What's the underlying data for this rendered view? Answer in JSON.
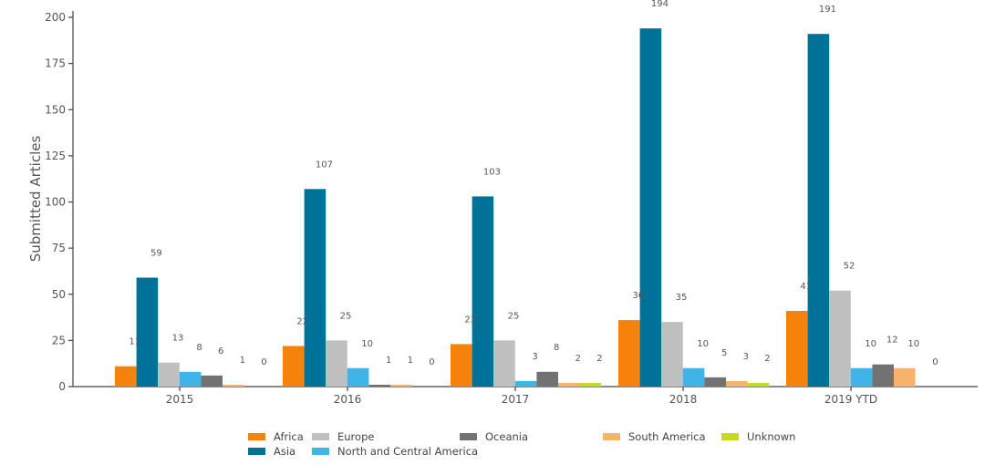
{
  "chart_data": {
    "type": "bar",
    "title": "",
    "xlabel": "",
    "ylabel": "Submitted Articles",
    "ylim": [
      0,
      200
    ],
    "yticks": [
      0,
      25,
      50,
      75,
      100,
      125,
      150,
      175,
      200
    ],
    "grid": false,
    "legend_position": "bottom",
    "categories": [
      "2015",
      "2016",
      "2017",
      "2018",
      "2019 YTD"
    ],
    "series": [
      {
        "name": "Africa",
        "color": "#f5820a",
        "values": [
          11,
          22,
          23,
          36,
          41
        ]
      },
      {
        "name": "Asia",
        "color": "#00729a",
        "values": [
          59,
          107,
          103,
          194,
          191
        ]
      },
      {
        "name": "Europe",
        "color": "#bfbfbf",
        "values": [
          13,
          25,
          25,
          35,
          52
        ]
      },
      {
        "name": "North and Central America",
        "color": "#3fb4e8",
        "values": [
          8,
          10,
          3,
          10,
          10
        ]
      },
      {
        "name": "Oceania",
        "color": "#727272",
        "values": [
          6,
          1,
          8,
          5,
          12
        ]
      },
      {
        "name": "South America",
        "color": "#f9b26b",
        "values": [
          1,
          1,
          2,
          3,
          10
        ]
      },
      {
        "name": "Unknown",
        "color": "#c8da1e",
        "values": [
          0,
          0,
          2,
          2,
          0
        ]
      }
    ],
    "value_labels_shown": [
      [
        11,
        59,
        13,
        8,
        6,
        1,
        0
      ],
      [
        22,
        107,
        25,
        10,
        1,
        1,
        0
      ],
      [
        23,
        103,
        25,
        3,
        8,
        2,
        2
      ],
      [
        36,
        194,
        35,
        10,
        5,
        3,
        2
      ],
      [
        41,
        191,
        52,
        10,
        12,
        10,
        0
      ]
    ]
  }
}
